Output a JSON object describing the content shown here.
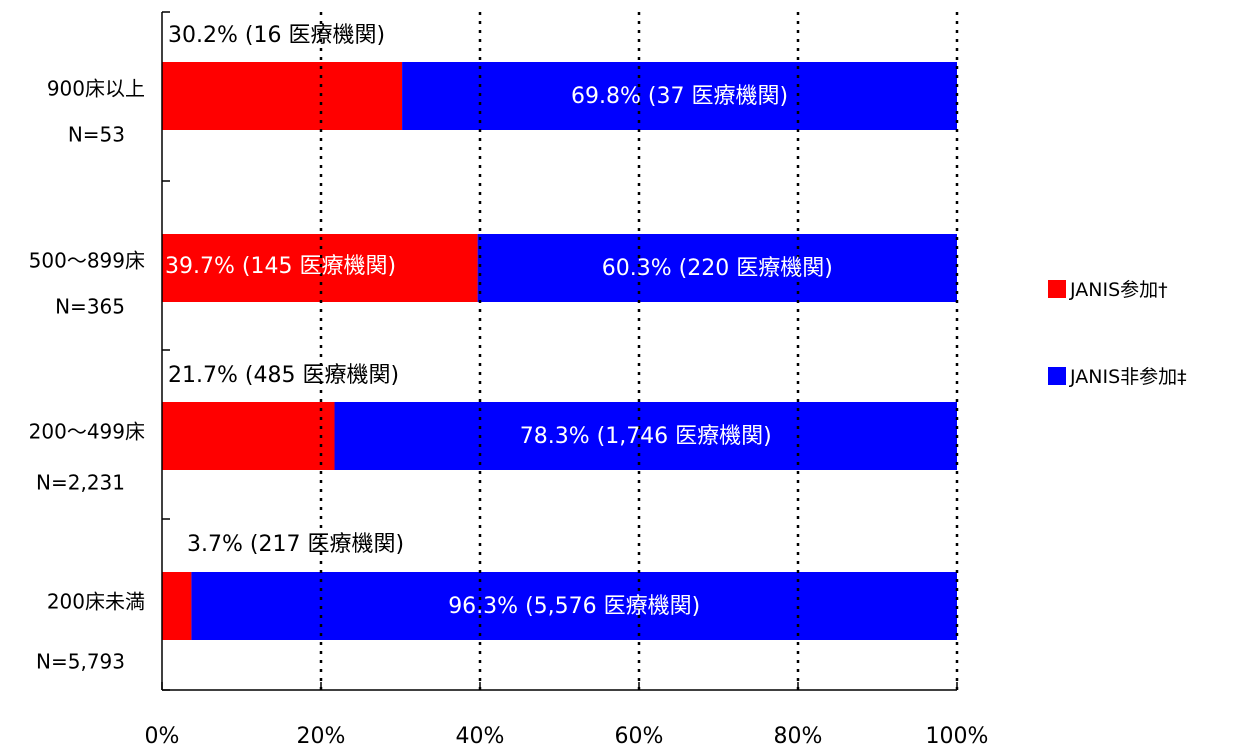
{
  "chart_data": {
    "type": "bar",
    "orientation": "horizontal",
    "stacked": true,
    "percent_scale": true,
    "title": "",
    "xlabel": "",
    "ylabel": "",
    "xlim": [
      0,
      100
    ],
    "x_ticks": [
      "0%",
      "20%",
      "40%",
      "60%",
      "80%",
      "100%"
    ],
    "grid": "vertical dotted at 20, 40, 60, 80, 100",
    "legend_position": "right",
    "categories": [
      {
        "label": "900床以上",
        "n_label": "N=53"
      },
      {
        "label": "500～899床",
        "n_label": "N=365"
      },
      {
        "label": "200～499床",
        "n_label": "N=2,231"
      },
      {
        "label": "200床未満",
        "n_label": "N=5,793"
      }
    ],
    "series": [
      {
        "name": "JANIS参加",
        "legend_label": "JANIS参加†",
        "color": "#ff0000",
        "values": [
          30.2,
          39.7,
          21.7,
          3.7
        ],
        "data_labels": [
          "30.2% (16 医療機関)",
          "39.7% (145 医療機関)",
          "21.7% (485 医療機関)",
          "3.7% (217 医療機関)"
        ]
      },
      {
        "name": "JANIS非参加",
        "legend_label": "JANIS非参加‡",
        "color": "#0000ff",
        "values": [
          69.8,
          60.3,
          78.3,
          96.3
        ],
        "data_labels": [
          "69.8% (37 医療機関)",
          "60.3% (220 医療機関)",
          "78.3% (1,746 医療機関)",
          "96.3% (5,576 医療機関)"
        ]
      }
    ]
  }
}
